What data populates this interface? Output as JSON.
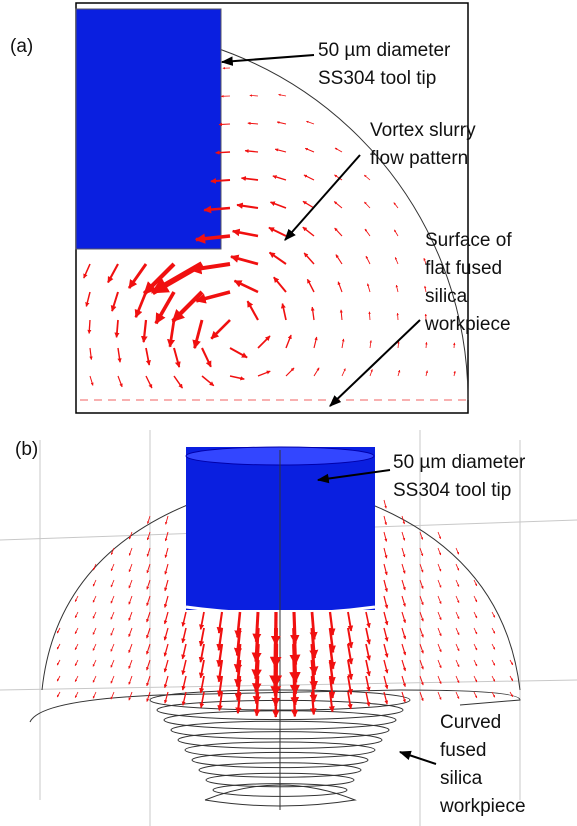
{
  "panels": [
    {
      "label": "(a)",
      "annotations": [
        {
          "lines": [
            "50 µm diameter",
            "SS304 tool tip"
          ]
        },
        {
          "lines": [
            "Vortex slurry",
            "flow pattern"
          ]
        },
        {
          "lines": [
            "Surface of",
            "flat fused",
            "silica",
            "workpiece"
          ]
        }
      ]
    },
    {
      "label": "(b)",
      "annotations": [
        {
          "lines": [
            "50 µm diameter",
            "SS304 tool tip"
          ]
        },
        {
          "lines": [
            "Curved",
            "fused",
            "silica",
            "workpiece"
          ]
        }
      ]
    }
  ]
}
